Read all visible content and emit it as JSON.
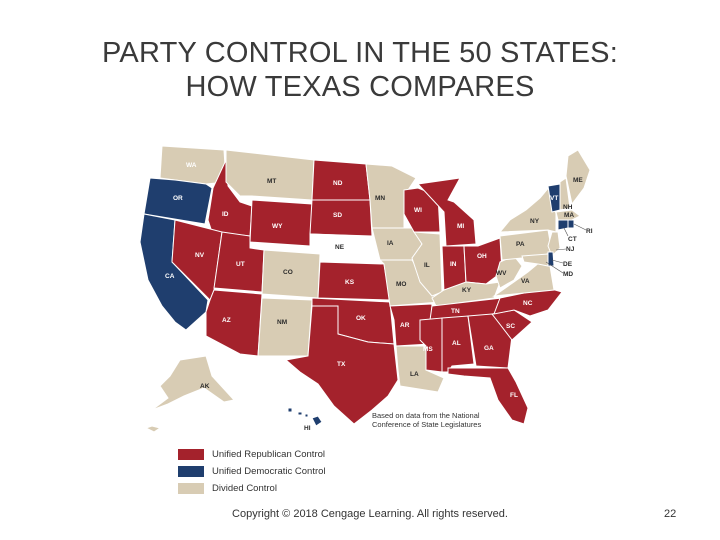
{
  "title": {
    "line1": "PARTY CONTROL IN THE 50 STATES:",
    "line2": "HOW TEXAS COMPARES"
  },
  "colors": {
    "republican": "#a4222c",
    "democratic": "#1f3e6e",
    "divided": "#d8ccb4",
    "nebraska": "#ffffff"
  },
  "map": {
    "states": [
      {
        "abbr": "WA",
        "control": "divided"
      },
      {
        "abbr": "OR",
        "control": "democratic"
      },
      {
        "abbr": "CA",
        "control": "democratic"
      },
      {
        "abbr": "ID",
        "control": "republican"
      },
      {
        "abbr": "NV",
        "control": "republican"
      },
      {
        "abbr": "MT",
        "control": "divided"
      },
      {
        "abbr": "WY",
        "control": "republican"
      },
      {
        "abbr": "UT",
        "control": "republican"
      },
      {
        "abbr": "AZ",
        "control": "republican"
      },
      {
        "abbr": "CO",
        "control": "divided"
      },
      {
        "abbr": "NM",
        "control": "divided"
      },
      {
        "abbr": "ND",
        "control": "republican"
      },
      {
        "abbr": "SD",
        "control": "republican"
      },
      {
        "abbr": "NE",
        "control": "nonpartisan"
      },
      {
        "abbr": "KS",
        "control": "republican"
      },
      {
        "abbr": "OK",
        "control": "republican"
      },
      {
        "abbr": "TX",
        "control": "republican"
      },
      {
        "abbr": "MN",
        "control": "divided"
      },
      {
        "abbr": "IA",
        "control": "divided"
      },
      {
        "abbr": "MO",
        "control": "divided"
      },
      {
        "abbr": "AR",
        "control": "republican"
      },
      {
        "abbr": "LA",
        "control": "divided"
      },
      {
        "abbr": "WI",
        "control": "republican"
      },
      {
        "abbr": "IL",
        "control": "divided"
      },
      {
        "abbr": "MI",
        "control": "republican"
      },
      {
        "abbr": "IN",
        "control": "republican"
      },
      {
        "abbr": "OH",
        "control": "republican"
      },
      {
        "abbr": "KY",
        "control": "divided"
      },
      {
        "abbr": "TN",
        "control": "republican"
      },
      {
        "abbr": "MS",
        "control": "republican"
      },
      {
        "abbr": "AL",
        "control": "republican"
      },
      {
        "abbr": "GA",
        "control": "republican"
      },
      {
        "abbr": "FL",
        "control": "republican"
      },
      {
        "abbr": "SC",
        "control": "republican"
      },
      {
        "abbr": "NC",
        "control": "republican"
      },
      {
        "abbr": "VA",
        "control": "divided"
      },
      {
        "abbr": "WV",
        "control": "divided"
      },
      {
        "abbr": "PA",
        "control": "divided"
      },
      {
        "abbr": "NY",
        "control": "divided"
      },
      {
        "abbr": "VT",
        "control": "democratic"
      },
      {
        "abbr": "NH",
        "control": "divided"
      },
      {
        "abbr": "ME",
        "control": "divided"
      },
      {
        "abbr": "MA",
        "control": "divided"
      },
      {
        "abbr": "RI",
        "control": "democratic"
      },
      {
        "abbr": "CT",
        "control": "democratic"
      },
      {
        "abbr": "NJ",
        "control": "divided"
      },
      {
        "abbr": "DE",
        "control": "democratic"
      },
      {
        "abbr": "MD",
        "control": "divided"
      },
      {
        "abbr": "AK",
        "control": "divided"
      },
      {
        "abbr": "HI",
        "control": "democratic"
      }
    ]
  },
  "source_note": {
    "line1": "Based on data from the National",
    "line2": "Conference of State Legislatures"
  },
  "legend": {
    "republican": "Unified Republican Control",
    "democratic": "Unified Democratic Control",
    "divided": "Divided Control"
  },
  "footer": {
    "copyright": "Copyright © 2018 Cengage Learning. All rights reserved.",
    "page_number": "22"
  }
}
